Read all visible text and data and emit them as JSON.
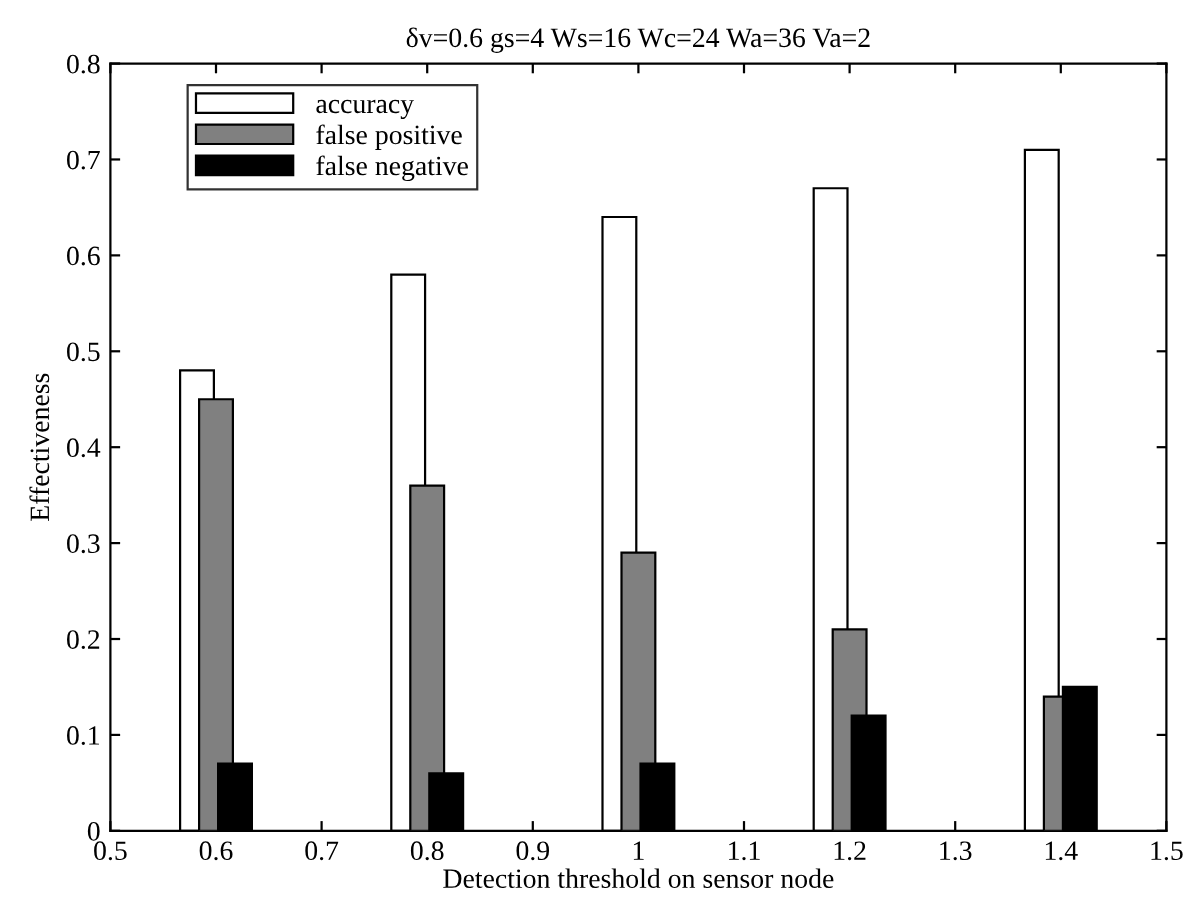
{
  "chart_data": {
    "type": "bar",
    "title": "δv=0.6 gs=4 Ws=16 Wc=24 Wa=36 Va=2",
    "xlabel": "Detection threshold on sensor node",
    "ylabel": "Effectiveness",
    "x": [
      0.6,
      0.8,
      1,
      1.2,
      1.4
    ],
    "series": [
      {
        "name": "accuracy",
        "color": "#ffffff",
        "values": [
          0.48,
          0.58,
          0.64,
          0.67,
          0.71
        ]
      },
      {
        "name": "false positive",
        "color": "#808080",
        "values": [
          0.45,
          0.36,
          0.29,
          0.21,
          0.14
        ]
      },
      {
        "name": "false negative",
        "color": "#000000",
        "values": [
          0.07,
          0.06,
          0.07,
          0.12,
          0.15
        ]
      }
    ],
    "xlim": [
      0.5,
      1.5
    ],
    "xticks": [
      0.5,
      0.6,
      0.7,
      0.8,
      0.9,
      1,
      1.1,
      1.2,
      1.3,
      1.4,
      1.5
    ],
    "ylim": [
      0,
      0.8
    ],
    "yticks": [
      0,
      0.1,
      0.2,
      0.3,
      0.4,
      0.5,
      0.6,
      0.7,
      0.8
    ],
    "grid": false,
    "legend": "top left"
  }
}
